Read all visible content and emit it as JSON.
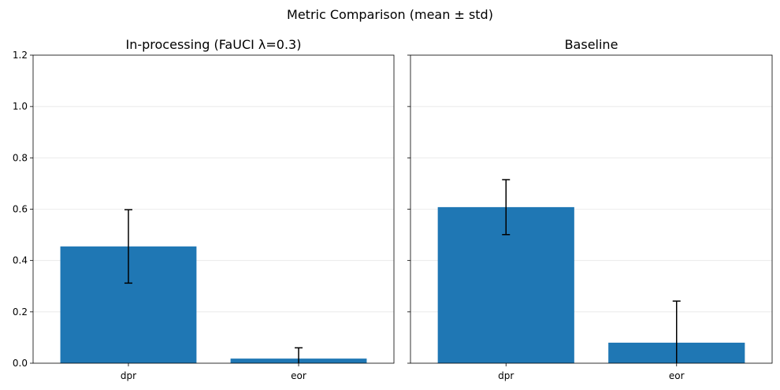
{
  "figure_title": "Metric Comparison (mean ± std)",
  "chart_data": [
    {
      "type": "bar",
      "title": "In-processing (FaUCI λ=0.3)",
      "xlabel": "",
      "ylabel": "",
      "categories": [
        "dpr",
        "eor"
      ],
      "values": [
        0.455,
        0.018
      ],
      "errors": [
        0.143,
        0.042
      ],
      "ylim": [
        0,
        1.2
      ],
      "yticks": [
        0.0,
        0.2,
        0.4,
        0.6,
        0.8,
        1.0,
        1.2
      ],
      "ytick_labels": [
        "0.0",
        "0.2",
        "0.4",
        "0.6",
        "0.8",
        "1.0",
        "1.2"
      ],
      "grid": "y",
      "bar_color": "#1f77b4"
    },
    {
      "type": "bar",
      "title": "Baseline",
      "xlabel": "",
      "ylabel": "",
      "categories": [
        "dpr",
        "eor"
      ],
      "values": [
        0.608,
        0.08
      ],
      "errors": [
        0.107,
        0.162
      ],
      "ylim": [
        0,
        1.2
      ],
      "yticks": [
        0.0,
        0.2,
        0.4,
        0.6,
        0.8,
        1.0,
        1.2
      ],
      "ytick_labels": [
        "",
        "",
        "",
        "",
        "",
        "",
        ""
      ],
      "grid": "y",
      "bar_color": "#1f77b4"
    }
  ]
}
